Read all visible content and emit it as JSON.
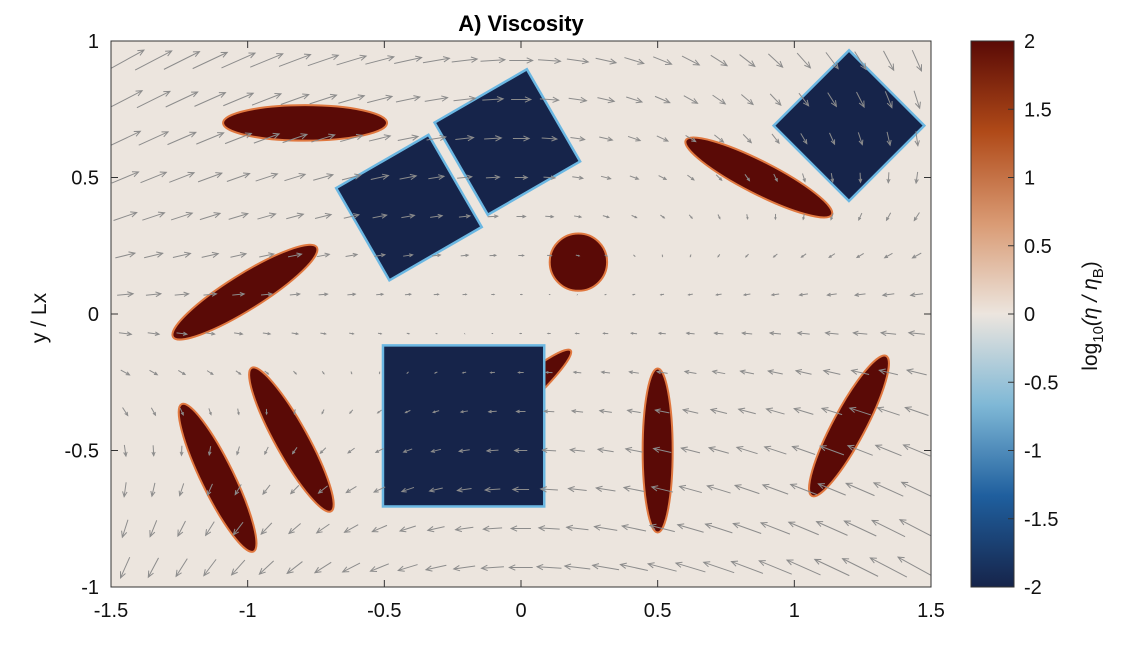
{
  "chart_data": {
    "type": "heatmap",
    "title": "A) Viscosity",
    "ylabel": "y / Lx",
    "xlabel": "",
    "xlim": [
      -1.5,
      1.5
    ],
    "ylim": [
      -1,
      1
    ],
    "xticks": [
      -1.5,
      -1,
      -0.5,
      0,
      0.5,
      1,
      1.5
    ],
    "xtick_labels": [
      "-1.5",
      "-1",
      "-0.5",
      "0",
      "0.5",
      "1",
      "1.5"
    ],
    "yticks": [
      -1,
      -0.5,
      0,
      0.5,
      1
    ],
    "ytick_labels": [
      "-1",
      "-0.5",
      "0",
      "0.5",
      "1"
    ],
    "background_value": 0,
    "colorbar": {
      "label_prefix": "log",
      "label_sub": "10",
      "label_mid": "(η / η",
      "label_sub2": "B",
      "label_suffix": ")",
      "range": [
        -2,
        2
      ],
      "ticks": [
        2,
        1.5,
        1,
        0.5,
        0,
        -0.5,
        -1,
        -1.5,
        -2
      ],
      "tick_labels": [
        "2",
        "1.5",
        "1",
        "0.5",
        "0",
        "-0.5",
        "-1",
        "-1.5",
        "-2"
      ],
      "colors": [
        "#16244a",
        "#1f5f9e",
        "#7fb8d6",
        "#ece5de",
        "#d99a73",
        "#b04a18",
        "#5a0a06"
      ]
    },
    "inclusions": [
      {
        "kind": "ellipse",
        "value": 2,
        "cx": -0.79,
        "cy": 0.7,
        "a": 0.3,
        "b": 0.065,
        "angle": 0
      },
      {
        "kind": "ellipse",
        "value": 2,
        "cx": 0.87,
        "cy": 0.5,
        "a": 0.3,
        "b": 0.06,
        "angle": -27
      },
      {
        "kind": "ellipse",
        "value": 2,
        "cx": -1.01,
        "cy": 0.08,
        "a": 0.31,
        "b": 0.065,
        "angle": 32
      },
      {
        "kind": "ellipse",
        "value": 2,
        "cx": 0.21,
        "cy": 0.19,
        "a": 0.105,
        "b": 0.105,
        "angle": 0
      },
      {
        "kind": "ellipse",
        "value": 2,
        "cx": -0.09,
        "cy": -0.37,
        "a": 0.36,
        "b": 0.05,
        "angle": 41
      },
      {
        "kind": "ellipse",
        "value": 2,
        "cx": 0.5,
        "cy": -0.5,
        "a": 0.3,
        "b": 0.055,
        "angle": 90
      },
      {
        "kind": "ellipse",
        "value": 2,
        "cx": 1.2,
        "cy": -0.41,
        "a": 0.29,
        "b": 0.06,
        "angle": 62
      },
      {
        "kind": "ellipse",
        "value": 2,
        "cx": -1.11,
        "cy": -0.6,
        "a": 0.3,
        "b": 0.06,
        "angle": -64
      },
      {
        "kind": "ellipse",
        "value": 2,
        "cx": -0.84,
        "cy": -0.46,
        "a": 0.3,
        "b": 0.06,
        "angle": -61
      },
      {
        "kind": "rect",
        "value": -2,
        "cx": -0.41,
        "cy": 0.39,
        "w": 0.39,
        "h": 0.39,
        "angle": 30
      },
      {
        "kind": "rect",
        "value": -2,
        "cx": -0.05,
        "cy": 0.63,
        "w": 0.39,
        "h": 0.39,
        "angle": 30
      },
      {
        "kind": "rect",
        "value": -2,
        "cx": 1.2,
        "cy": 0.69,
        "w": 0.39,
        "h": 0.39,
        "angle": 45
      },
      {
        "kind": "rect",
        "value": -2,
        "cx": -0.21,
        "cy": -0.41,
        "w": 0.59,
        "h": 0.59,
        "angle": 0
      }
    ],
    "vector_field": {
      "nx": 29,
      "ny": 14,
      "color": "#8c8c8c",
      "description_flow": "simple shear (u ~ y) with a quadrupolar component"
    }
  }
}
